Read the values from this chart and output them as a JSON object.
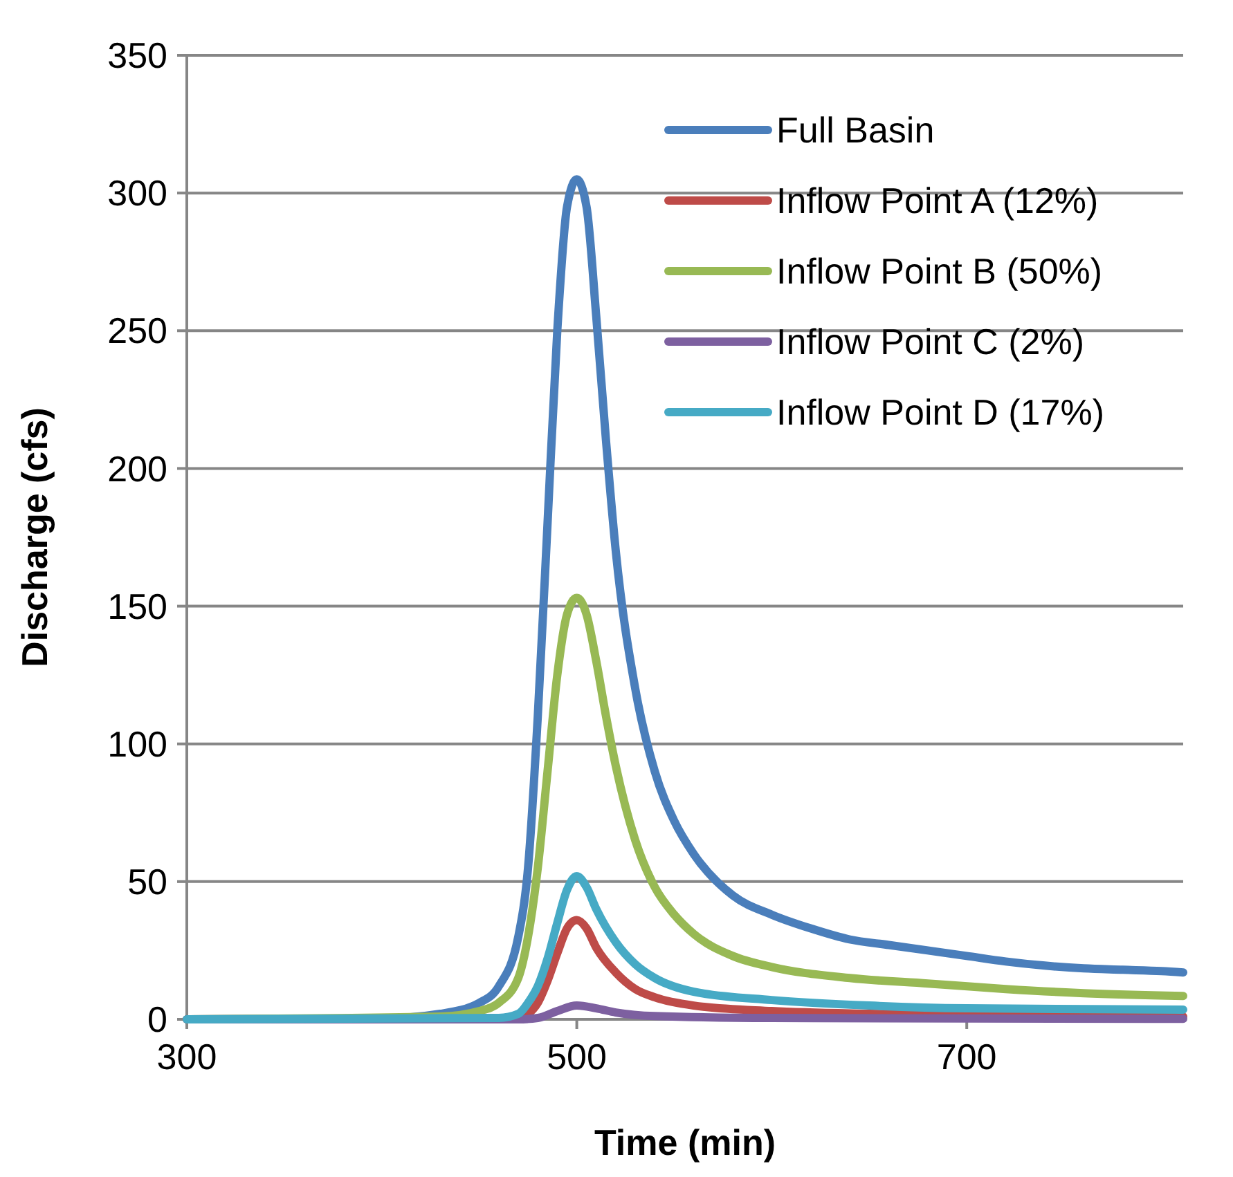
{
  "chart_data": {
    "type": "line",
    "xlabel": "Time (min)",
    "ylabel": "Discharge (cfs)",
    "xlim": [
      300,
      811
    ],
    "xticks": [
      300,
      500,
      700
    ],
    "ylim": [
      0,
      350
    ],
    "yticks": [
      0,
      50,
      100,
      150,
      200,
      250,
      300,
      350
    ],
    "grid": "y",
    "legend": "top right",
    "marker": "none",
    "line_style": "solid",
    "series": [
      {
        "name": "Full Basin",
        "color": "#4a7ebb",
        "x": [
          300,
          400,
          430,
          450,
          460,
          470,
          475,
          480,
          485,
          490,
          495,
          500,
          505,
          510,
          515,
          520,
          530,
          540,
          550,
          560,
          580,
          600,
          620,
          640,
          660,
          680,
          700,
          720,
          740,
          760,
          780,
          800,
          811
        ],
        "values": [
          0,
          0.3,
          2,
          6,
          12,
          30,
          55,
          110,
          180,
          250,
          295,
          305,
          295,
          255,
          210,
          170,
          120,
          90,
          72,
          60,
          45,
          38,
          33,
          29,
          27,
          25,
          23,
          21,
          19.5,
          18.5,
          18,
          17.5,
          17
        ]
      },
      {
        "name": "Inflow Point A (12%)",
        "color": "#be4b48",
        "x": [
          300,
          470,
          475,
          480,
          485,
          490,
          495,
          500,
          505,
          510,
          520,
          530,
          540,
          560,
          600,
          650,
          700,
          811
        ],
        "values": [
          0,
          0.5,
          2,
          6,
          14,
          24,
          33,
          36,
          33,
          26,
          17,
          11,
          8,
          5,
          3,
          2,
          1.5,
          1
        ]
      },
      {
        "name": "Inflow Point B (50%)",
        "color": "#98b954",
        "x": [
          300,
          430,
          450,
          460,
          470,
          475,
          480,
          485,
          490,
          495,
          500,
          505,
          510,
          515,
          520,
          530,
          540,
          550,
          560,
          580,
          600,
          640,
          680,
          720,
          760,
          811
        ],
        "values": [
          0,
          1,
          3,
          6,
          15,
          30,
          55,
          90,
          125,
          147,
          153,
          147,
          130,
          110,
          92,
          65,
          48,
          38,
          31,
          23,
          19,
          15,
          13,
          11,
          9.5,
          8.5
        ]
      },
      {
        "name": "Inflow Point C (2%)",
        "color": "#7d60a0",
        "x": [
          300,
          470,
          480,
          490,
          500,
          510,
          520,
          540,
          600,
          811
        ],
        "values": [
          0,
          0,
          0.5,
          3,
          5,
          4,
          2.5,
          1.2,
          0.5,
          0.2
        ]
      },
      {
        "name": "Inflow Point D (17%)",
        "color": "#46aac5",
        "x": [
          300,
          460,
          470,
          475,
          480,
          485,
          490,
          495,
          500,
          505,
          510,
          520,
          530,
          540,
          560,
          600,
          650,
          700,
          811
        ],
        "values": [
          0,
          0.5,
          2,
          6,
          12,
          22,
          35,
          47,
          52,
          48,
          40,
          28,
          20,
          15,
          10,
          7,
          5,
          4,
          3.5
        ]
      }
    ]
  }
}
